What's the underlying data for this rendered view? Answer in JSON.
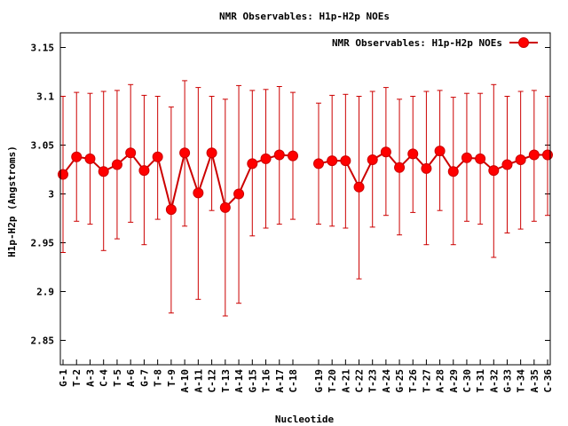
{
  "chart_data": {
    "type": "line",
    "title": "NMR Observables: H1p-H2p NOEs",
    "xlabel": "Nucleotide",
    "ylabel": "H1p-H2p (Angstroms)",
    "ylim": [
      2.825,
      3.165
    ],
    "yticks": [
      2.85,
      2.9,
      2.95,
      3,
      3.05,
      3.1,
      3.15
    ],
    "ytick_labels": [
      "2.85",
      "2.9",
      "2.95",
      "3",
      "3.05",
      "3.1",
      "3.15"
    ],
    "grid": false,
    "legend_position": "top-right",
    "colors": {
      "series": "#ff0000",
      "stroke": "#cc0000"
    },
    "series": [
      {
        "name": "NMR Observables: H1p-H2p NOEs",
        "groups": [
          {
            "categories": [
              "G-1",
              "T-2",
              "A-3",
              "C-4",
              "T-5",
              "A-6",
              "G-7",
              "T-8",
              "T-9",
              "A-10",
              "A-11",
              "C-12",
              "T-13",
              "A-14",
              "G-15",
              "T-16",
              "A-17",
              "C-18"
            ],
            "values": [
              3.02,
              3.038,
              3.036,
              3.023,
              3.03,
              3.042,
              3.024,
              3.038,
              2.984,
              3.042,
              3.001,
              3.042,
              2.986,
              3.0,
              3.031,
              3.036,
              3.04,
              3.039
            ],
            "err_low": [
              2.94,
              2.972,
              2.969,
              2.942,
              2.954,
              2.971,
              2.948,
              2.974,
              2.878,
              2.967,
              2.892,
              2.983,
              2.875,
              2.888,
              2.957,
              2.965,
              2.969,
              2.974
            ],
            "err_high": [
              3.1,
              3.104,
              3.103,
              3.105,
              3.106,
              3.112,
              3.101,
              3.1,
              3.089,
              3.116,
              3.109,
              3.1,
              3.097,
              3.111,
              3.106,
              3.107,
              3.11,
              3.104
            ]
          },
          {
            "categories": [
              "G-19",
              "T-20",
              "A-21",
              "C-22",
              "T-23",
              "A-24",
              "G-25",
              "T-26",
              "T-27",
              "A-28",
              "A-29",
              "C-30",
              "T-31",
              "A-32",
              "G-33",
              "T-34",
              "A-35",
              "C-36"
            ],
            "values": [
              3.031,
              3.034,
              3.034,
              3.007,
              3.035,
              3.043,
              3.027,
              3.041,
              3.026,
              3.044,
              3.023,
              3.037,
              3.036,
              3.024,
              3.03,
              3.035,
              3.04,
              3.04
            ],
            "err_low": [
              2.969,
              2.967,
              2.965,
              2.913,
              2.966,
              2.978,
              2.958,
              2.981,
              2.948,
              2.983,
              2.948,
              2.972,
              2.969,
              2.935,
              2.96,
              2.964,
              2.972,
              2.978
            ],
            "err_high": [
              3.093,
              3.101,
              3.102,
              3.1,
              3.105,
              3.109,
              3.097,
              3.1,
              3.105,
              3.106,
              3.099,
              3.103,
              3.103,
              3.112,
              3.1,
              3.105,
              3.106,
              3.1
            ]
          }
        ]
      }
    ]
  }
}
